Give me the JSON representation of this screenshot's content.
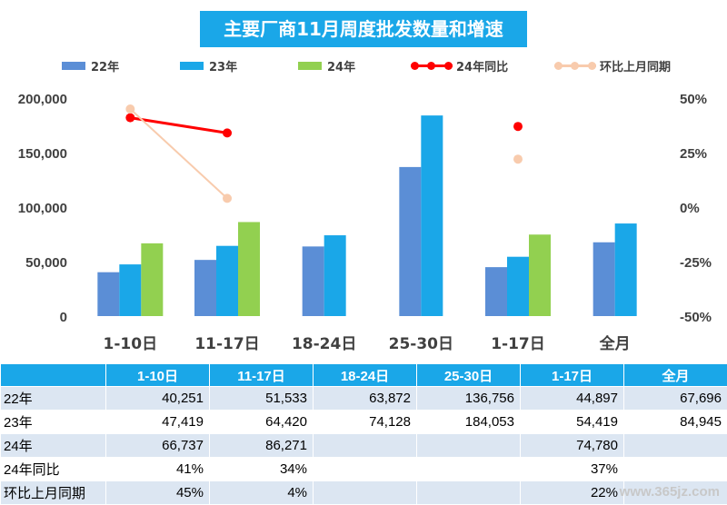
{
  "chart_data": {
    "type": "bar",
    "title": "主要厂商11月周度批发数量和增速",
    "categories": [
      "1-10日",
      "11-17日",
      "18-24日",
      "25-30日",
      "1-17日",
      "全月"
    ],
    "series": [
      {
        "name": "22年",
        "kind": "bar",
        "color": "#5b8ed6",
        "values": [
          40251,
          51533,
          63872,
          136756,
          44897,
          67696
        ]
      },
      {
        "name": "23年",
        "kind": "bar",
        "color": "#1aa7e8",
        "values": [
          47419,
          64420,
          74128,
          184053,
          54419,
          84945
        ]
      },
      {
        "name": "24年",
        "kind": "bar",
        "color": "#92d050",
        "values": [
          66737,
          86271,
          null,
          null,
          74780,
          null
        ]
      },
      {
        "name": "24年同比",
        "kind": "line",
        "axis": "right",
        "color": "#ff0000",
        "values": [
          41,
          34,
          null,
          null,
          37,
          null
        ]
      },
      {
        "name": "环比上月同期",
        "kind": "line",
        "axis": "right",
        "color": "#f8cbad",
        "values": [
          45,
          4,
          null,
          null,
          22,
          null
        ]
      }
    ],
    "y_left": {
      "min": 0,
      "max": 200000,
      "ticks": [
        "0",
        "50,000",
        "100,000",
        "150,000",
        "200,000"
      ]
    },
    "y_right": {
      "min": -50,
      "max": 50,
      "unit": "%",
      "ticks": [
        "-50%",
        "-25%",
        "0%",
        "25%",
        "50%"
      ]
    },
    "grid": false,
    "legend": "top"
  },
  "table": {
    "headers": [
      "",
      "1-10日",
      "11-17日",
      "18-24日",
      "25-30日",
      "1-17日",
      "全月"
    ],
    "rows": [
      [
        "22年",
        "40,251",
        "51,533",
        "63,872",
        "136,756",
        "44,897",
        "67,696"
      ],
      [
        "23年",
        "47,419",
        "64,420",
        "74,128",
        "184,053",
        "54,419",
        "84,945"
      ],
      [
        "24年",
        "66,737",
        "86,271",
        "",
        "",
        "74,780",
        ""
      ],
      [
        "24年同比",
        "41%",
        "34%",
        "",
        "",
        "37%",
        ""
      ],
      [
        "环比上月同期",
        "45%",
        "4%",
        "",
        "",
        "22%",
        ""
      ]
    ]
  },
  "watermark": "www.365jz.com"
}
